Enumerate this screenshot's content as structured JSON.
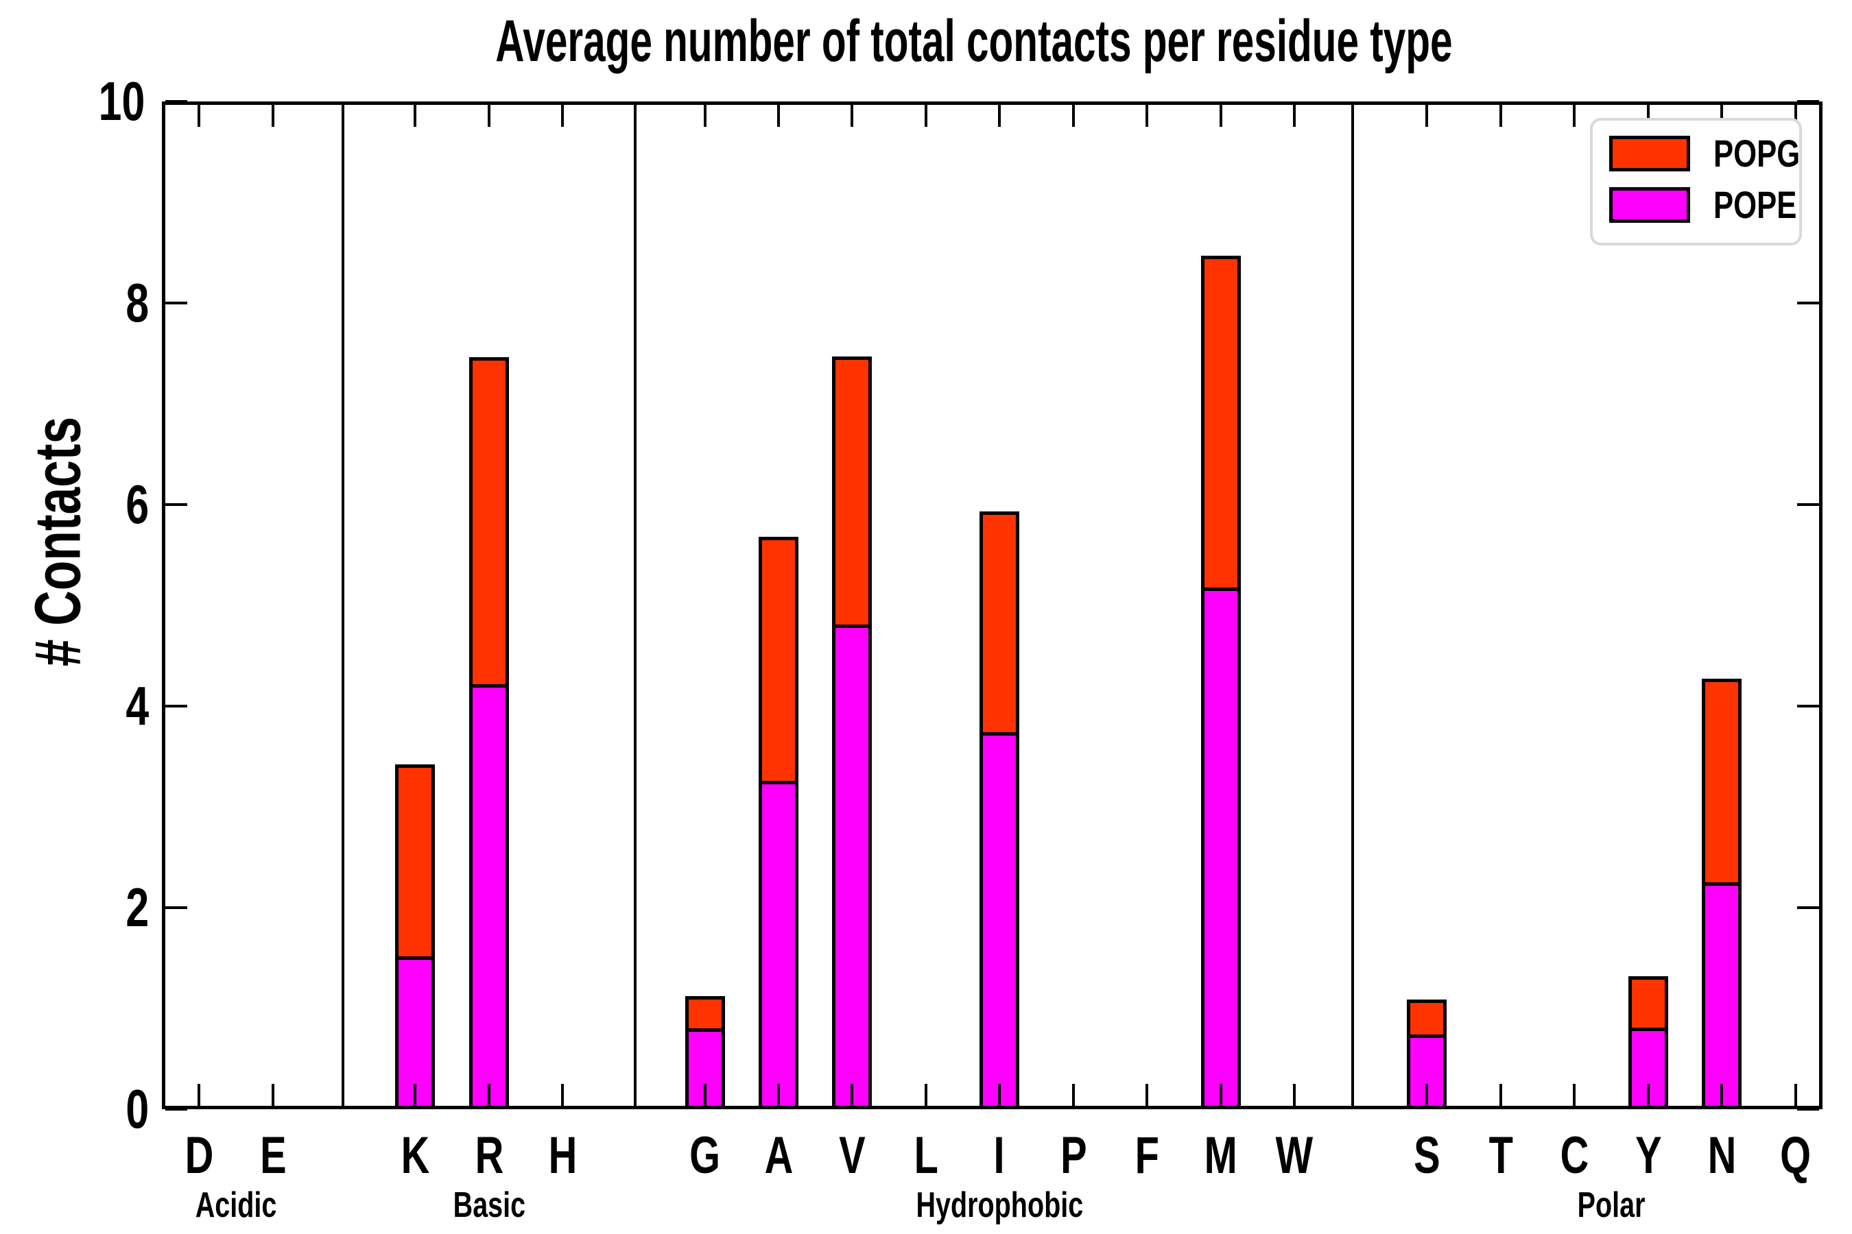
{
  "chart_data": {
    "type": "bar",
    "stacked": true,
    "title": "Average number of total contacts per residue type",
    "ylabel": "# Contacts",
    "xlabel": "",
    "ylim": [
      0,
      10
    ],
    "yticks": [
      0,
      2,
      4,
      6,
      8,
      10
    ],
    "grid": false,
    "background_color": "#ffffff",
    "axis_color": "#000000",
    "categories": [
      "D",
      "E",
      "K",
      "R",
      "H",
      "G",
      "A",
      "V",
      "L",
      "I",
      "P",
      "F",
      "M",
      "W",
      "S",
      "T",
      "C",
      "Y",
      "N",
      "Q"
    ],
    "groups": [
      {
        "label": "Acidic",
        "members": [
          "D",
          "E"
        ]
      },
      {
        "label": "Basic",
        "members": [
          "K",
          "R",
          "H"
        ]
      },
      {
        "label": "Hydrophobic",
        "members": [
          "G",
          "A",
          "V",
          "L",
          "I",
          "P",
          "F",
          "M",
          "W"
        ]
      },
      {
        "label": "Polar",
        "members": [
          "S",
          "T",
          "C",
          "Y",
          "N",
          "Q"
        ]
      }
    ],
    "series": [
      {
        "name": "POPE",
        "color": "#ff00ff",
        "values": [
          0,
          0,
          1.52,
          4.22,
          0,
          0.8,
          3.26,
          4.81,
          0,
          3.74,
          0,
          0,
          5.18,
          0,
          0.74,
          0,
          0,
          0.81,
          2.25,
          0
        ]
      },
      {
        "name": "POPG",
        "color": "#ff3300",
        "values": [
          0,
          0,
          1.9,
          3.24,
          0,
          0.32,
          2.42,
          2.66,
          0,
          2.19,
          0,
          0,
          3.29,
          0,
          0.35,
          0,
          0,
          0.51,
          2.02,
          0
        ]
      }
    ],
    "totals": [
      0,
      0,
      3.42,
      7.46,
      0,
      1.12,
      5.68,
      7.47,
      0,
      5.93,
      0,
      0,
      8.47,
      0,
      1.09,
      0,
      0,
      1.32,
      4.27,
      0
    ],
    "legend": {
      "position": "upper right",
      "entries": [
        "POPG",
        "POPE"
      ]
    }
  }
}
